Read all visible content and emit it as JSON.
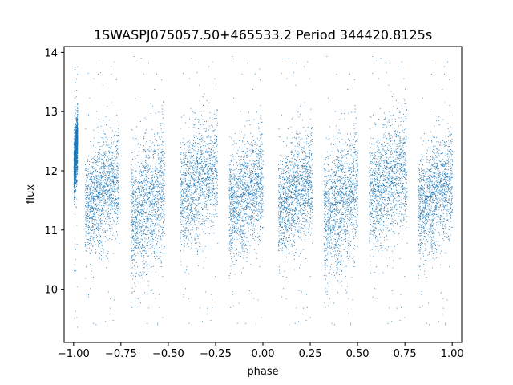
{
  "chart_data": {
    "type": "scatter",
    "title": "1SWASPJ075057.50+465533.2 Period 344420.8125s",
    "xlabel": "phase",
    "ylabel": "flux",
    "xlim": [
      -1.05,
      1.05
    ],
    "ylim": [
      9.1,
      14.1
    ],
    "x_ticks": [
      -1.0,
      -0.75,
      -0.5,
      -0.25,
      0.0,
      0.25,
      0.5,
      0.75,
      1.0
    ],
    "x_tick_labels": [
      "−1.00",
      "−0.75",
      "−0.50",
      "−0.25",
      "0.00",
      "0.25",
      "0.50",
      "0.75",
      "1.00"
    ],
    "y_ticks": [
      10,
      11,
      12,
      13,
      14
    ],
    "y_tick_labels": [
      "10",
      "11",
      "12",
      "13",
      "14"
    ],
    "grid": false,
    "legend": "none",
    "marker_color": "#1f77b4",
    "flux_range": [
      9.35,
      13.95
    ],
    "series": [
      {
        "clusters": [
          {
            "x_range": [
              -1.0,
              -0.98
            ],
            "median": 12.3,
            "spread": 0.25
          },
          {
            "x_range": [
              -0.94,
              -0.76
            ],
            "median": 11.6,
            "spread": 0.45
          },
          {
            "x_range": [
              -0.7,
              -0.52
            ],
            "median": 11.45,
            "spread": 0.55
          },
          {
            "x_range": [
              -0.44,
              -0.24
            ],
            "median": 11.8,
            "spread": 0.5
          },
          {
            "x_range": [
              -0.18,
              0.0
            ],
            "median": 11.6,
            "spread": 0.45
          },
          {
            "x_range": [
              0.08,
              0.26
            ],
            "median": 11.6,
            "spread": 0.45
          },
          {
            "x_range": [
              0.32,
              0.5
            ],
            "median": 11.45,
            "spread": 0.55
          },
          {
            "x_range": [
              0.56,
              0.76
            ],
            "median": 11.8,
            "spread": 0.5
          },
          {
            "x_range": [
              0.82,
              1.0
            ],
            "median": 11.6,
            "spread": 0.45
          }
        ]
      }
    ]
  }
}
